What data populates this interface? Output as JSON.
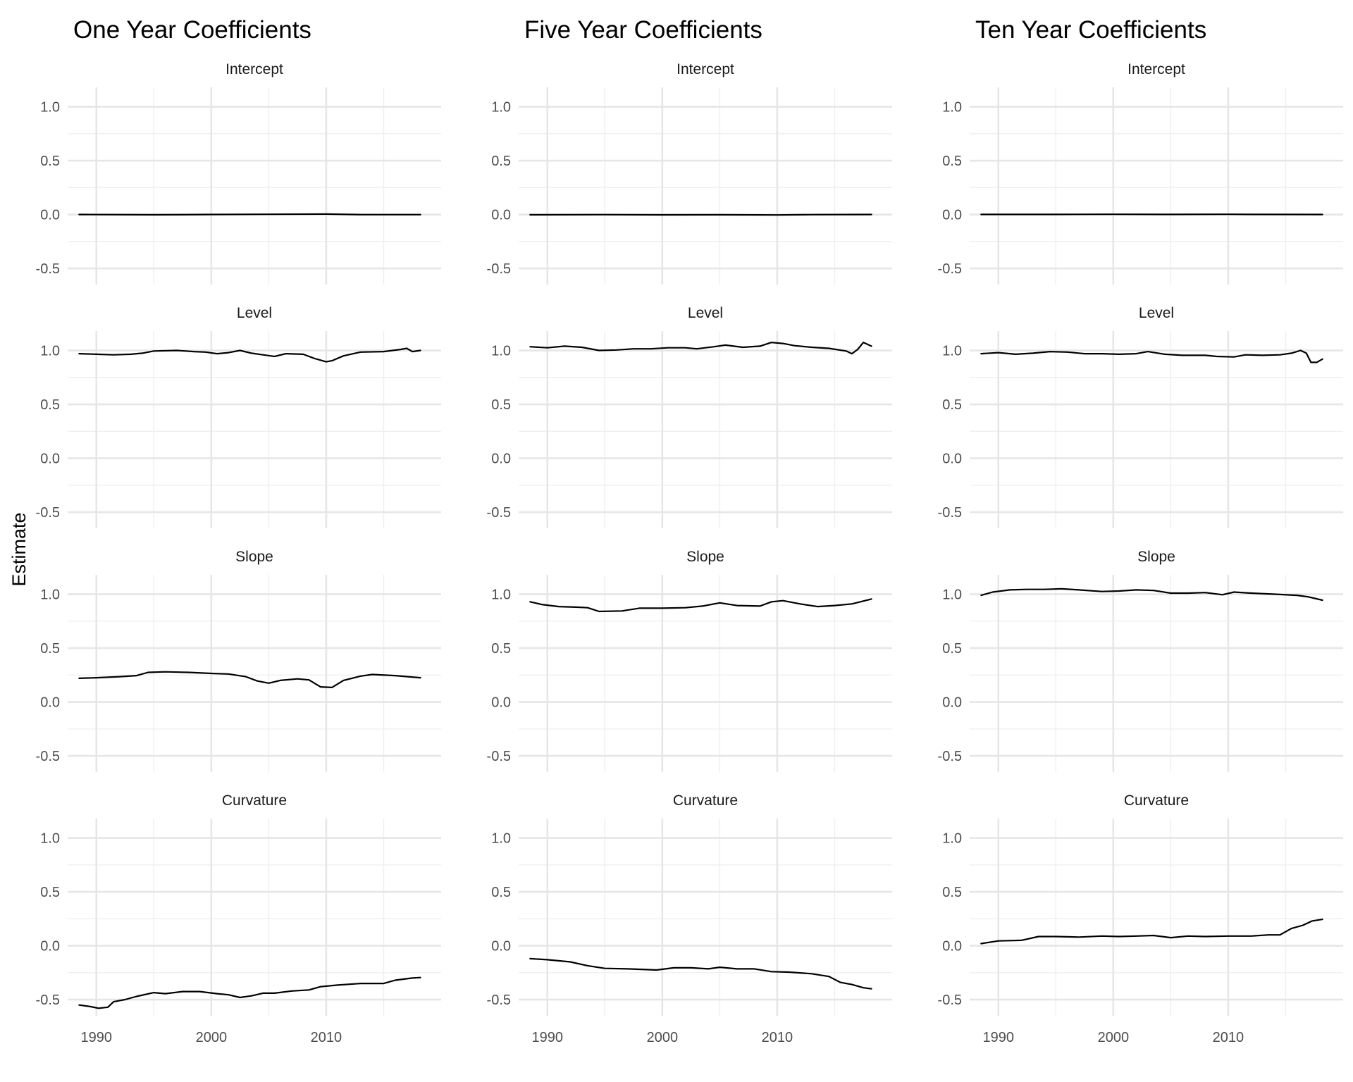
{
  "y_axis_label": "Estimate",
  "chart_data": [
    {
      "type": "line",
      "title": "One Year Coefficients",
      "panels": [
        {
          "title": "Intercept",
          "xlim": [
            1987.5,
            2020
          ],
          "ylim": [
            -0.65,
            1.18
          ],
          "yticks": [
            1.0,
            0.5,
            0.0,
            -0.5
          ],
          "xticks": [
            1990,
            2000,
            2010
          ],
          "x": [
            1988.5,
            1995,
            2000,
            2005,
            2010,
            2013,
            2018.2
          ],
          "y": [
            0.0,
            -0.002,
            0.0,
            0.002,
            0.004,
            -0.001,
            -0.001
          ]
        },
        {
          "title": "Level",
          "xlim": [
            1987.5,
            2020
          ],
          "ylim": [
            -0.65,
            1.18
          ],
          "yticks": [
            1.0,
            0.5,
            0.0,
            -0.5
          ],
          "xticks": [
            1990,
            2000,
            2010
          ],
          "x": [
            1988.5,
            1990,
            1991.5,
            1993,
            1994,
            1995,
            1997,
            1998.5,
            1999.5,
            2000.5,
            2001.5,
            2002.5,
            2003.5,
            2004.5,
            2005.5,
            2006.5,
            2008,
            2009,
            2010,
            2010.5,
            2011.5,
            2013,
            2015,
            2016.5,
            2017,
            2017.5,
            2018.2
          ],
          "y": [
            0.97,
            0.965,
            0.96,
            0.965,
            0.975,
            0.995,
            1.0,
            0.99,
            0.985,
            0.97,
            0.98,
            1.0,
            0.975,
            0.96,
            0.945,
            0.97,
            0.965,
            0.925,
            0.895,
            0.905,
            0.95,
            0.985,
            0.99,
            1.01,
            1.02,
            0.99,
            1.0
          ]
        },
        {
          "title": "Slope",
          "xlim": [
            1987.5,
            2020
          ],
          "ylim": [
            -0.65,
            1.18
          ],
          "yticks": [
            1.0,
            0.5,
            0.0,
            -0.5
          ],
          "xticks": [
            1990,
            2000,
            2010
          ],
          "x": [
            1988.5,
            1990,
            1992,
            1993.5,
            1994.5,
            1996,
            1998,
            2000,
            2001.5,
            2003,
            2004,
            2005,
            2006,
            2007.5,
            2008.5,
            2009.5,
            2010.5,
            2011.5,
            2013,
            2014,
            2016,
            2018.2
          ],
          "y": [
            0.22,
            0.225,
            0.235,
            0.245,
            0.275,
            0.28,
            0.275,
            0.265,
            0.26,
            0.235,
            0.195,
            0.175,
            0.2,
            0.215,
            0.205,
            0.14,
            0.135,
            0.2,
            0.24,
            0.255,
            0.245,
            0.225
          ]
        },
        {
          "title": "Curvature",
          "xlim": [
            1987.5,
            2020
          ],
          "ylim": [
            -0.65,
            1.18
          ],
          "yticks": [
            1.0,
            0.5,
            0.0,
            -0.5
          ],
          "xticks": [
            1990,
            2000,
            2010
          ],
          "x": [
            1988.5,
            1989.5,
            1990.2,
            1991,
            1991.5,
            1992.5,
            1993.5,
            1995,
            1996,
            1997.5,
            1999,
            2000.5,
            2001.5,
            2002.5,
            2003.5,
            2004.5,
            2005.5,
            2007,
            2008.5,
            2009.5,
            2011,
            2013,
            2015,
            2016,
            2017.5,
            2018.2
          ],
          "y": [
            -0.55,
            -0.565,
            -0.58,
            -0.57,
            -0.52,
            -0.5,
            -0.47,
            -0.435,
            -0.445,
            -0.425,
            -0.425,
            -0.445,
            -0.455,
            -0.48,
            -0.465,
            -0.44,
            -0.44,
            -0.42,
            -0.41,
            -0.38,
            -0.365,
            -0.35,
            -0.35,
            -0.32,
            -0.3,
            -0.295
          ]
        }
      ]
    },
    {
      "type": "line",
      "title": "Five Year Coefficients",
      "panels": [
        {
          "title": "Intercept",
          "xlim": [
            1987.5,
            2020
          ],
          "ylim": [
            -0.65,
            1.18
          ],
          "yticks": [
            1.0,
            0.5,
            0.0,
            -0.5
          ],
          "xticks": [
            1990,
            2000,
            2010
          ],
          "x": [
            1988.5,
            1995,
            2000,
            2005,
            2010,
            2013,
            2018.2
          ],
          "y": [
            -0.002,
            -0.001,
            -0.003,
            -0.002,
            -0.004,
            -0.001,
            0.0
          ]
        },
        {
          "title": "Level",
          "xlim": [
            1987.5,
            2020
          ],
          "ylim": [
            -0.65,
            1.18
          ],
          "yticks": [
            1.0,
            0.5,
            0.0,
            -0.5
          ],
          "xticks": [
            1990,
            2000,
            2010
          ],
          "x": [
            1988.5,
            1990,
            1991.5,
            1993,
            1994.5,
            1996,
            1997.5,
            1999,
            2000.5,
            2002,
            2003,
            2004.5,
            2005.5,
            2007,
            2008.5,
            2009.5,
            2010.5,
            2011.5,
            2013,
            2014.5,
            2016,
            2016.5,
            2017,
            2017.5,
            2018.2
          ],
          "y": [
            1.035,
            1.025,
            1.04,
            1.03,
            1.0,
            1.005,
            1.015,
            1.015,
            1.025,
            1.025,
            1.015,
            1.035,
            1.05,
            1.03,
            1.04,
            1.075,
            1.065,
            1.045,
            1.03,
            1.02,
            0.995,
            0.97,
            1.01,
            1.075,
            1.04
          ]
        },
        {
          "title": "Slope",
          "xlim": [
            1987.5,
            2020
          ],
          "ylim": [
            -0.65,
            1.18
          ],
          "yticks": [
            1.0,
            0.5,
            0.0,
            -0.5
          ],
          "xticks": [
            1990,
            2000,
            2010
          ],
          "x": [
            1988.5,
            1989.5,
            1991,
            1992.5,
            1993.5,
            1994.5,
            1996.5,
            1998,
            2000,
            2002,
            2003.5,
            2005,
            2006.5,
            2008.5,
            2009.5,
            2010.5,
            2012,
            2013.5,
            2015,
            2016.5,
            2018.2
          ],
          "y": [
            0.93,
            0.905,
            0.885,
            0.88,
            0.875,
            0.84,
            0.845,
            0.87,
            0.87,
            0.875,
            0.89,
            0.92,
            0.895,
            0.89,
            0.93,
            0.94,
            0.91,
            0.885,
            0.895,
            0.91,
            0.955
          ]
        },
        {
          "title": "Curvature",
          "xlim": [
            1987.5,
            2020
          ],
          "ylim": [
            -0.65,
            1.18
          ],
          "yticks": [
            1.0,
            0.5,
            0.0,
            -0.5
          ],
          "xticks": [
            1990,
            2000,
            2010
          ],
          "x": [
            1988.5,
            1990,
            1992,
            1993.5,
            1995,
            1997,
            1999.5,
            2001,
            2002.5,
            2004,
            2005,
            2006.5,
            2008,
            2009.5,
            2011,
            2013,
            2014.5,
            2015.5,
            2016.5,
            2017.5,
            2018.2
          ],
          "y": [
            -0.12,
            -0.13,
            -0.15,
            -0.185,
            -0.21,
            -0.215,
            -0.225,
            -0.205,
            -0.205,
            -0.215,
            -0.2,
            -0.215,
            -0.215,
            -0.24,
            -0.245,
            -0.26,
            -0.285,
            -0.34,
            -0.36,
            -0.39,
            -0.4
          ]
        }
      ]
    },
    {
      "type": "line",
      "title": "Ten Year Coefficients",
      "panels": [
        {
          "title": "Intercept",
          "xlim": [
            1987.5,
            2020
          ],
          "ylim": [
            -0.65,
            1.18
          ],
          "yticks": [
            1.0,
            0.5,
            0.0,
            -0.5
          ],
          "xticks": [
            1990,
            2000,
            2010
          ],
          "x": [
            1988.5,
            1995,
            2000,
            2005,
            2010,
            2013,
            2018.2
          ],
          "y": [
            0.001,
            0.001,
            0.002,
            0.001,
            0.002,
            0.001,
            0.0
          ]
        },
        {
          "title": "Level",
          "xlim": [
            1987.5,
            2020
          ],
          "ylim": [
            -0.65,
            1.18
          ],
          "yticks": [
            1.0,
            0.5,
            0.0,
            -0.5
          ],
          "xticks": [
            1990,
            2000,
            2010
          ],
          "x": [
            1988.5,
            1990,
            1991.5,
            1993,
            1994.5,
            1996,
            1997.5,
            1999,
            2000.5,
            2002,
            2003,
            2004.5,
            2006,
            2008,
            2009,
            2010.5,
            2011.5,
            2013,
            2014.5,
            2015.5,
            2016.3,
            2016.8,
            2017.2,
            2017.7,
            2018.2
          ],
          "y": [
            0.97,
            0.98,
            0.965,
            0.975,
            0.99,
            0.985,
            0.97,
            0.97,
            0.965,
            0.97,
            0.99,
            0.965,
            0.955,
            0.955,
            0.945,
            0.94,
            0.96,
            0.955,
            0.96,
            0.975,
            1.0,
            0.975,
            0.89,
            0.89,
            0.92
          ]
        },
        {
          "title": "Slope",
          "xlim": [
            1987.5,
            2020
          ],
          "ylim": [
            -0.65,
            1.18
          ],
          "yticks": [
            1.0,
            0.5,
            0.0,
            -0.5
          ],
          "xticks": [
            1990,
            2000,
            2010
          ],
          "x": [
            1988.5,
            1989.5,
            1991,
            1992.5,
            1994,
            1995.5,
            1997,
            1999,
            2000.5,
            2002,
            2003.5,
            2005,
            2006.5,
            2008,
            2009.5,
            2010.5,
            2012,
            2014,
            2016,
            2017,
            2018.2
          ],
          "y": [
            0.99,
            1.02,
            1.04,
            1.045,
            1.045,
            1.05,
            1.04,
            1.025,
            1.03,
            1.04,
            1.035,
            1.01,
            1.01,
            1.015,
            0.995,
            1.02,
            1.01,
            1.0,
            0.99,
            0.975,
            0.945
          ]
        },
        {
          "title": "Curvature",
          "xlim": [
            1987.5,
            2020
          ],
          "ylim": [
            -0.65,
            1.18
          ],
          "yticks": [
            1.0,
            0.5,
            0.0,
            -0.5
          ],
          "xticks": [
            1990,
            2000,
            2010
          ],
          "x": [
            1988.5,
            1990,
            1992,
            1993.5,
            1995,
            1997,
            1999,
            2000.5,
            2002,
            2003.5,
            2005,
            2006.5,
            2008,
            2010,
            2012,
            2013.5,
            2014.5,
            2015.5,
            2016.5,
            2017.3,
            2018.2
          ],
          "y": [
            0.02,
            0.045,
            0.05,
            0.085,
            0.085,
            0.08,
            0.09,
            0.085,
            0.09,
            0.095,
            0.075,
            0.09,
            0.085,
            0.09,
            0.09,
            0.1,
            0.1,
            0.16,
            0.19,
            0.23,
            0.245
          ]
        }
      ]
    }
  ]
}
